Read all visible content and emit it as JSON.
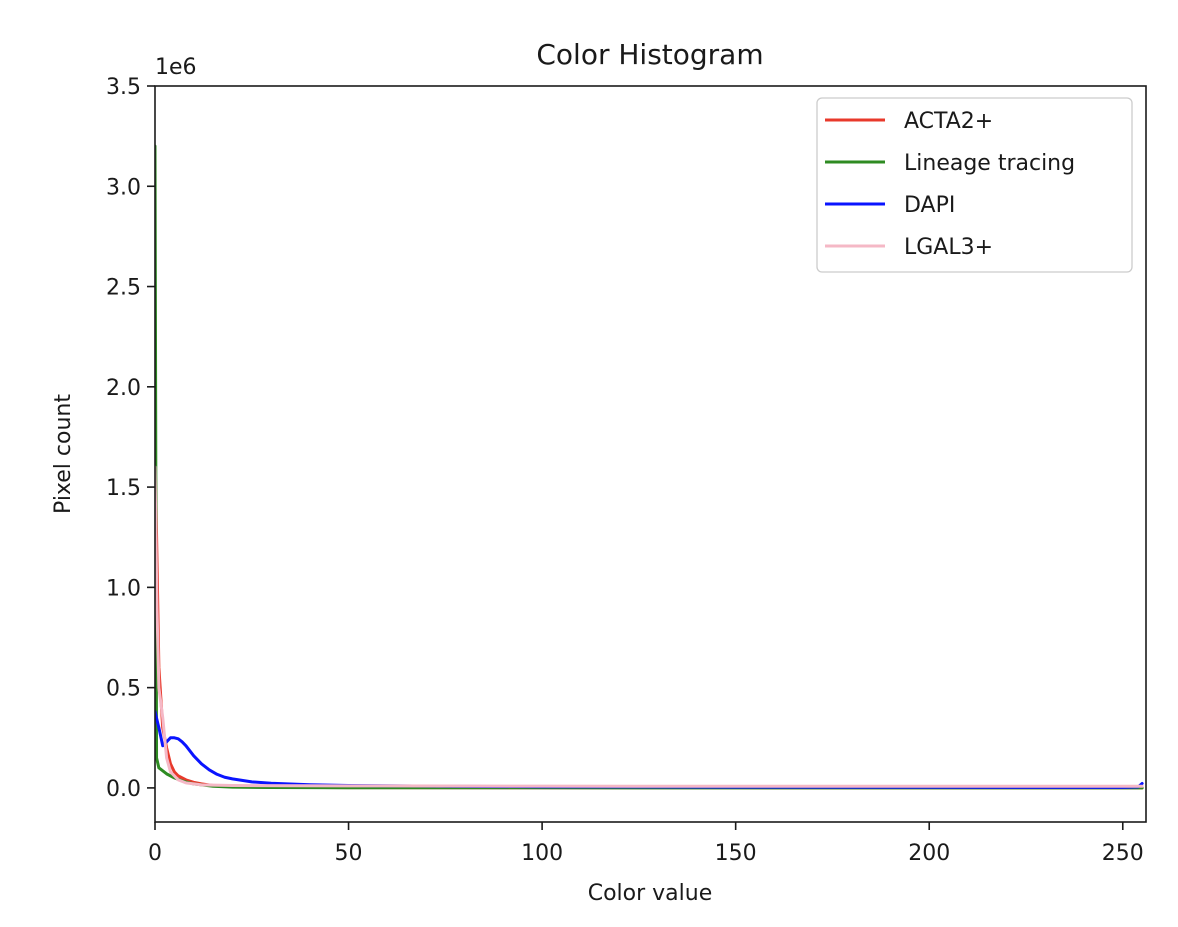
{
  "chart_data": {
    "type": "line",
    "title": "Color Histogram",
    "xlabel": "Color value",
    "ylabel": "Pixel count",
    "y_offset_text": "1e6",
    "xlim": [
      0,
      256
    ],
    "ylim": [
      -170000,
      3500000
    ],
    "x_ticks": [
      0,
      50,
      100,
      150,
      200,
      250
    ],
    "x_tick_labels": [
      "0",
      "50",
      "100",
      "150",
      "200",
      "250"
    ],
    "y_ticks": [
      0,
      500000,
      1000000,
      1500000,
      2000000,
      2500000,
      3000000,
      3500000
    ],
    "y_tick_labels": [
      "0.0",
      "0.5",
      "1.0",
      "1.5",
      "2.0",
      "2.5",
      "3.0",
      "3.5"
    ],
    "grid": false,
    "legend_position": "top-right",
    "series": [
      {
        "name": "ACTA2+",
        "color": "#e8392b",
        "points": [
          [
            0,
            1700000
          ],
          [
            1,
            600000
          ],
          [
            2,
            300000
          ],
          [
            3,
            200000
          ],
          [
            4,
            120000
          ],
          [
            5,
            80000
          ],
          [
            6,
            60000
          ],
          [
            8,
            40000
          ],
          [
            10,
            28000
          ],
          [
            12,
            20000
          ],
          [
            15,
            12000
          ],
          [
            20,
            6000
          ],
          [
            30,
            3000
          ],
          [
            50,
            1500
          ],
          [
            100,
            800
          ],
          [
            150,
            500
          ],
          [
            200,
            400
          ],
          [
            255,
            300
          ]
        ]
      },
      {
        "name": "Lineage tracing",
        "color": "#2e8b22",
        "points": [
          [
            0,
            3200000
          ],
          [
            0.4,
            150000
          ],
          [
            1,
            100000
          ],
          [
            2,
            85000
          ],
          [
            3,
            70000
          ],
          [
            5,
            50000
          ],
          [
            7,
            35000
          ],
          [
            10,
            20000
          ],
          [
            15,
            8000
          ],
          [
            20,
            4000
          ],
          [
            30,
            2000
          ],
          [
            50,
            1000
          ],
          [
            100,
            500
          ],
          [
            150,
            300
          ],
          [
            200,
            200
          ],
          [
            255,
            200
          ]
        ]
      },
      {
        "name": "DAPI",
        "color": "#0a14ff",
        "points": [
          [
            0,
            380000
          ],
          [
            1,
            300000
          ],
          [
            2,
            210000
          ],
          [
            3,
            230000
          ],
          [
            4,
            250000
          ],
          [
            5,
            250000
          ],
          [
            6,
            245000
          ],
          [
            7,
            230000
          ],
          [
            8,
            210000
          ],
          [
            9,
            185000
          ],
          [
            10,
            160000
          ],
          [
            12,
            120000
          ],
          [
            14,
            90000
          ],
          [
            16,
            68000
          ],
          [
            18,
            53000
          ],
          [
            20,
            45000
          ],
          [
            25,
            30000
          ],
          [
            30,
            23000
          ],
          [
            40,
            16000
          ],
          [
            50,
            12000
          ],
          [
            75,
            8000
          ],
          [
            100,
            6000
          ],
          [
            150,
            4000
          ],
          [
            200,
            3000
          ],
          [
            250,
            2500
          ],
          [
            254,
            5000
          ],
          [
            255,
            22000
          ]
        ]
      },
      {
        "name": "LGAL3+",
        "color": "#f5b8c6",
        "points": [
          [
            0,
            1600000
          ],
          [
            0.5,
            900000
          ],
          [
            1,
            500000
          ],
          [
            2,
            350000
          ],
          [
            3,
            150000
          ],
          [
            4,
            80000
          ],
          [
            6,
            40000
          ],
          [
            8,
            25000
          ],
          [
            12,
            15000
          ],
          [
            20,
            12000
          ],
          [
            50,
            10000
          ],
          [
            100,
            9000
          ],
          [
            150,
            8000
          ],
          [
            200,
            8000
          ],
          [
            255,
            8000
          ]
        ]
      }
    ]
  }
}
